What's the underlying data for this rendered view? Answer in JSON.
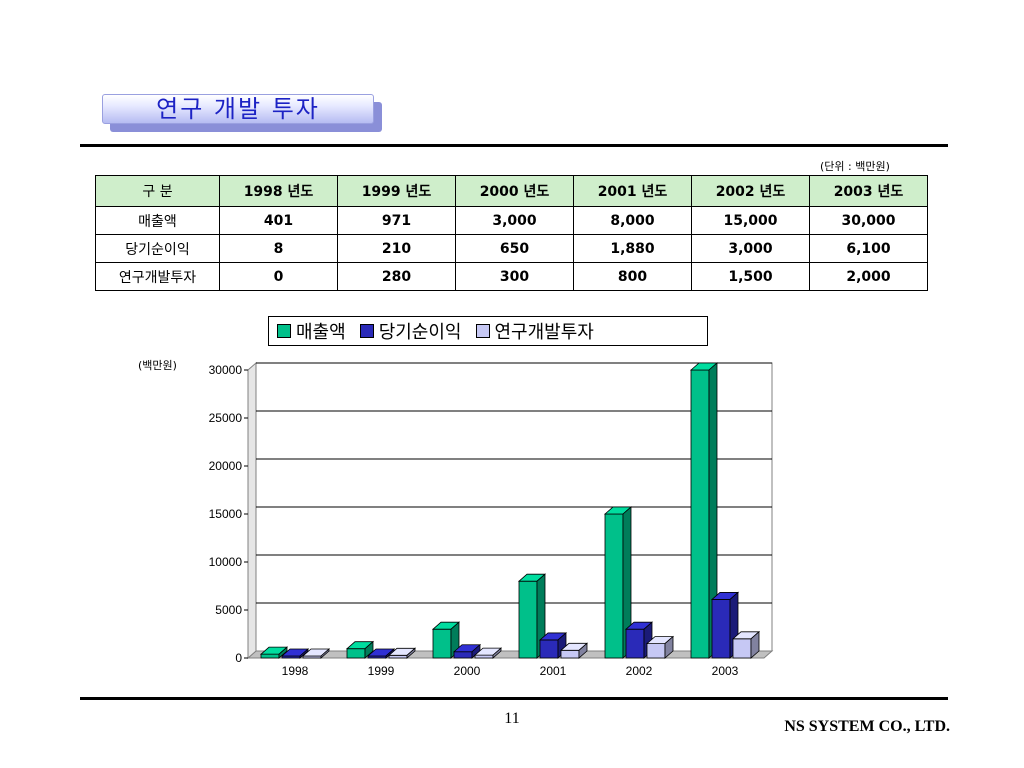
{
  "slide": {
    "title": "연구 개발 투자",
    "unit_note": "(단위 : 백만원)",
    "page_number": "11",
    "company": "NS SYSTEM CO., LTD."
  },
  "table": {
    "header": [
      "구   분",
      "1998 년도",
      "1999 년도",
      "2000 년도",
      "2001 년도",
      "2002 년도",
      "2003 년도"
    ],
    "rows": [
      {
        "label": "매출액",
        "values": [
          "401",
          "971",
          "3,000",
          "8,000",
          "15,000",
          "30,000"
        ]
      },
      {
        "label": "당기순이익",
        "values": [
          "8",
          "210",
          "650",
          "1,880",
          "3,000",
          "6,100"
        ]
      },
      {
        "label": "연구개발투자",
        "values": [
          "0",
          "280",
          "300",
          "800",
          "1,500",
          "2,000"
        ]
      }
    ]
  },
  "chart_data": {
    "type": "bar",
    "categories": [
      "1998",
      "1999",
      "2000",
      "2001",
      "2002",
      "2003"
    ],
    "series": [
      {
        "name": "매출액",
        "values": [
          401,
          971,
          3000,
          8000,
          15000,
          30000
        ],
        "color": "#00c08a"
      },
      {
        "name": "당기순이익",
        "values": [
          8,
          210,
          650,
          1880,
          3000,
          6100
        ],
        "color": "#2a2ab8"
      },
      {
        "name": "연구개발투자",
        "values": [
          0,
          280,
          300,
          800,
          1500,
          2000
        ],
        "color": "#c6c8f4"
      }
    ],
    "ylabel": "(백만원)",
    "ylim": [
      0,
      30000
    ],
    "yticks": [
      "0",
      "5000",
      "10000",
      "15000",
      "20000",
      "25000",
      "30000"
    ],
    "grid": true,
    "legend_position": "top"
  }
}
